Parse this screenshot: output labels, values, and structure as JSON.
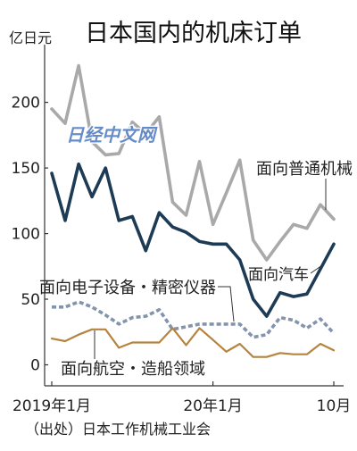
{
  "chart_data": {
    "type": "line",
    "title": "日本国内的机床订单",
    "ylabel": "亿日元",
    "xlabel": "",
    "ylim": [
      -16,
      244
    ],
    "yticks": [
      0,
      50,
      100,
      150,
      200
    ],
    "x": [
      "2019-01",
      "2019-02",
      "2019-03",
      "2019-04",
      "2019-05",
      "2019-06",
      "2019-07",
      "2019-08",
      "2019-09",
      "2019-10",
      "2019-11",
      "2019-12",
      "2020-01",
      "2020-02",
      "2020-03",
      "2020-04",
      "2020-05",
      "2020-06",
      "2020-07",
      "2020-08",
      "2020-09",
      "2020-10"
    ],
    "xticks": [
      {
        "x": "2019-01",
        "label": "2019年1月"
      },
      {
        "x": "2020-01",
        "label": "20年1月"
      },
      {
        "x": "2020-10",
        "label": "10月"
      }
    ],
    "grid": false,
    "legend": "inline",
    "series": [
      {
        "name": "面向普通机械",
        "color": "#a9a9a9",
        "dashed": false,
        "values": [
          195,
          184,
          228,
          170,
          160,
          161,
          185,
          176,
          189,
          124,
          114,
          155,
          107,
          131,
          156,
          95,
          80,
          94,
          107,
          104,
          122,
          111
        ]
      },
      {
        "name": "面向汽车",
        "color": "#1e3b56",
        "dashed": false,
        "values": [
          146,
          110,
          153,
          128,
          150,
          110,
          113,
          87,
          116,
          105,
          101,
          94,
          92,
          92,
          80,
          50,
          37,
          55,
          52,
          54,
          73,
          92
        ]
      },
      {
        "name": "面向电子设备・精密仪器",
        "color": "#8394ad",
        "dashed": true,
        "values": [
          44,
          44,
          48,
          44,
          38,
          31,
          36,
          37,
          42,
          27,
          29,
          31,
          31,
          31,
          31,
          21,
          23,
          36,
          34,
          28,
          35,
          24
        ]
      },
      {
        "name": "面向航空・造船领域",
        "color": "#b5843e",
        "dashed": false,
        "values": [
          20,
          18,
          23,
          27,
          27,
          13,
          17,
          17,
          17,
          28,
          15,
          28,
          19,
          10,
          16,
          6,
          6,
          9,
          8,
          8,
          16,
          11
        ]
      }
    ]
  },
  "source": "（出处）日本工作机械工业会",
  "watermark": "日经中文网"
}
